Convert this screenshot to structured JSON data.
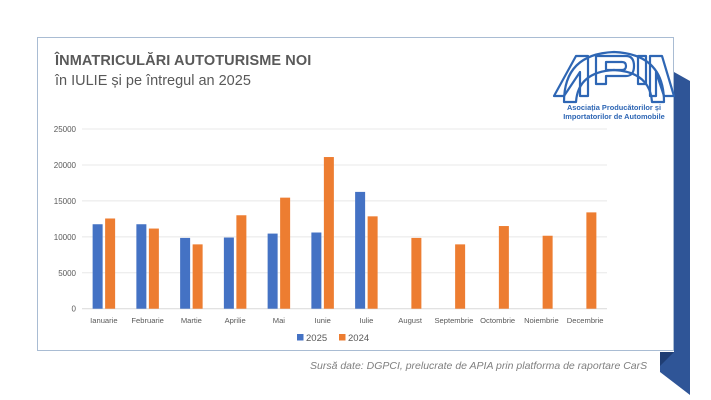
{
  "header": {
    "title": "ÎNMATRICULĂRI AUTOTURISME NOI",
    "subtitle": "în IULIE și pe întregul an 2025"
  },
  "logo": {
    "name": "APIA",
    "line1": "Asociația Producătorilor și",
    "line2": "Importatorilor de Automobile",
    "color": "#2e66b4"
  },
  "footer": {
    "source": "Sursă date: DGPCI, prelucrate de APIA prin platforma de raportare CarS"
  },
  "colors": {
    "series_2025": "#4472c4",
    "series_2024": "#ed7d31",
    "ribbon": "#2f5597",
    "ribbon_dark": "#1f3d73",
    "card_border": "#a9bcd3"
  },
  "chart_data": {
    "type": "bar",
    "title": "ÎNMATRICULĂRI AUTOTURISME NOI",
    "subtitle": "în IULIE și pe întregul an 2025",
    "xlabel": "",
    "ylabel": "",
    "categories": [
      "Ianuarie",
      "Februarie",
      "Martie",
      "Aprilie",
      "Mai",
      "Iunie",
      "Iulie",
      "August",
      "Septembrie",
      "Octombrie",
      "Noiembrie",
      "Decembrie"
    ],
    "series": [
      {
        "name": "2025",
        "color": "#4472c4",
        "values": [
          11750,
          11750,
          9850,
          9900,
          10450,
          10600,
          16250,
          null,
          null,
          null,
          null,
          null
        ]
      },
      {
        "name": "2024",
        "color": "#ed7d31",
        "values": [
          12550,
          11150,
          8950,
          13000,
          15450,
          21100,
          12850,
          9850,
          8950,
          11500,
          10150,
          13400
        ]
      }
    ],
    "ylim": [
      0,
      25000
    ],
    "yticks": [
      0,
      5000,
      10000,
      15000,
      20000,
      25000
    ],
    "grid": true,
    "legend": "bottom"
  }
}
